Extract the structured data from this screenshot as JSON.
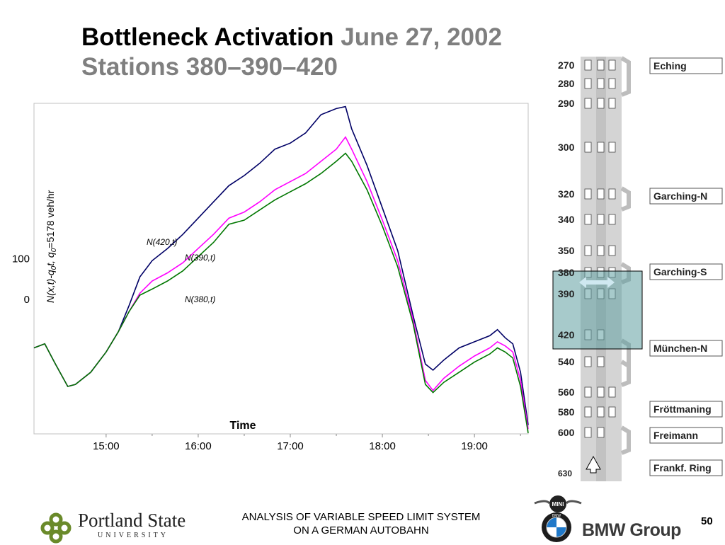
{
  "slide": {
    "title_main": "Bottleneck Activation",
    "title_date": "June 27, 2002",
    "title_sub": "Stations 380–390–420",
    "footer_line1": "ANALYSIS OF VARIABLE SPEED LIMIT SYSTEM",
    "footer_line2": "ON A GERMAN AUTOBAHN",
    "page_number": "50",
    "university_name": "Portland State",
    "university_sub": "UNIVERSITY",
    "company": "BMW Group",
    "company_marks": [
      "MINI",
      "BMW"
    ]
  },
  "chart_data": {
    "type": "line",
    "xlabel": "Time",
    "ylabel": "N(x,t)-q0t, q0=5178 veh/hr",
    "x_ticks": [
      "15:00",
      "16:00",
      "17:00",
      "18:00",
      "19:00"
    ],
    "y_ticks": [
      0,
      100
    ],
    "xlim": [
      "14:13",
      "19:35"
    ],
    "ylim": [
      -332,
      483
    ],
    "grid": false,
    "colors": {
      "N420": "#000066",
      "N390": "#ff00ff",
      "N380": "#007700"
    },
    "series": [
      {
        "name": "N(420,t)",
        "x": [
          "14:13",
          "14:20",
          "14:27",
          "14:35",
          "14:40",
          "14:50",
          "15:00",
          "15:08",
          "15:15",
          "15:22",
          "15:30",
          "15:40",
          "15:50",
          "16:00",
          "16:10",
          "16:20",
          "16:30",
          "16:40",
          "16:50",
          "17:00",
          "17:10",
          "17:20",
          "17:30",
          "17:36",
          "17:40",
          "17:50",
          "18:00",
          "18:10",
          "18:20",
          "18:28",
          "18:33",
          "18:40",
          "18:50",
          "19:00",
          "19:10",
          "19:15",
          "19:20",
          "19:25",
          "19:30",
          "19:35"
        ],
        "values": [
          -120,
          -110,
          -160,
          -215,
          -210,
          -180,
          -130,
          -80,
          -15,
          55,
          95,
          125,
          160,
          200,
          240,
          280,
          305,
          335,
          370,
          385,
          410,
          455,
          470,
          475,
          420,
          330,
          225,
          120,
          -40,
          -160,
          -175,
          -150,
          -120,
          -105,
          -90,
          -75,
          -95,
          -110,
          -180,
          -310
        ]
      },
      {
        "name": "N(390,t)",
        "x": [
          "14:13",
          "14:20",
          "14:27",
          "14:35",
          "14:40",
          "14:50",
          "15:00",
          "15:08",
          "15:15",
          "15:22",
          "15:30",
          "15:40",
          "15:50",
          "16:00",
          "16:10",
          "16:20",
          "16:30",
          "16:40",
          "16:50",
          "17:00",
          "17:10",
          "17:20",
          "17:30",
          "17:36",
          "17:40",
          "17:50",
          "18:00",
          "18:10",
          "18:20",
          "18:28",
          "18:33",
          "18:40",
          "18:50",
          "19:00",
          "19:10",
          "19:15",
          "19:20",
          "19:25",
          "19:30",
          "19:35"
        ],
        "values": [
          -120,
          -110,
          -160,
          -215,
          -210,
          -180,
          -130,
          -80,
          -30,
          15,
          45,
          65,
          90,
          125,
          160,
          200,
          215,
          240,
          270,
          290,
          310,
          340,
          370,
          400,
          370,
          290,
          195,
          95,
          -50,
          -200,
          -225,
          -195,
          -165,
          -140,
          -120,
          -105,
          -115,
          -130,
          -200,
          -320
        ]
      },
      {
        "name": "N(380,t)",
        "x": [
          "14:13",
          "14:20",
          "14:27",
          "14:35",
          "14:40",
          "14:50",
          "15:00",
          "15:08",
          "15:15",
          "15:22",
          "15:30",
          "15:40",
          "15:50",
          "16:00",
          "16:10",
          "16:20",
          "16:30",
          "16:40",
          "16:50",
          "17:00",
          "17:10",
          "17:20",
          "17:30",
          "17:36",
          "17:40",
          "17:50",
          "18:00",
          "18:10",
          "18:20",
          "18:28",
          "18:33",
          "18:40",
          "18:50",
          "19:00",
          "19:10",
          "19:15",
          "19:20",
          "19:25",
          "19:30",
          "19:35"
        ],
        "values": [
          -120,
          -110,
          -160,
          -215,
          -210,
          -180,
          -130,
          -80,
          -30,
          10,
          25,
          45,
          70,
          105,
          140,
          185,
          195,
          220,
          245,
          265,
          285,
          310,
          340,
          360,
          340,
          270,
          180,
          80,
          -60,
          -210,
          -230,
          -205,
          -180,
          -155,
          -135,
          -120,
          -130,
          -145,
          -215,
          -330
        ]
      }
    ],
    "annotations": [
      "N(420,t)",
      "N(390,t)",
      "N(380,t)"
    ]
  },
  "map": {
    "stations": [
      {
        "id": "270"
      },
      {
        "id": "280"
      },
      {
        "id": "290"
      },
      {
        "id": "300"
      },
      {
        "id": "320"
      },
      {
        "id": "340"
      },
      {
        "id": "350"
      },
      {
        "id": "380"
      },
      {
        "id": "390"
      },
      {
        "id": "420"
      },
      {
        "id": "540"
      },
      {
        "id": "560"
      },
      {
        "id": "580"
      },
      {
        "id": "600"
      },
      {
        "id": "630"
      }
    ],
    "interchanges": [
      "Eching",
      "Garching-N",
      "Garching-S",
      "München-N",
      "Fröttmaning",
      "Freimann",
      "Frankf. Ring"
    ],
    "highlighted": [
      "380",
      "390",
      "420"
    ],
    "colors": {
      "road": "#d4d4d4",
      "highlight": "#5f9ea0",
      "arrow": "#cfe8f0"
    }
  }
}
